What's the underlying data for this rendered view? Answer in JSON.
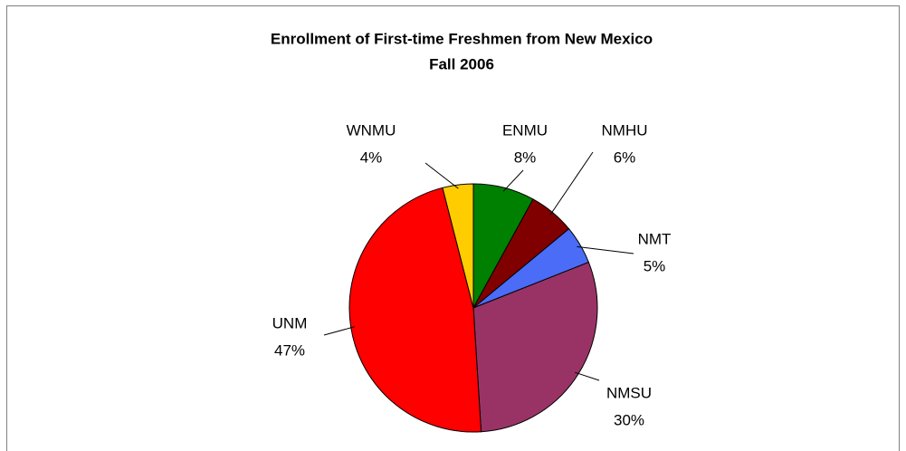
{
  "chart_data": {
    "type": "pie",
    "title": "Enrollment of First-time Freshmen from New Mexico",
    "subtitle": "Fall 2006",
    "categories": [
      "ENMU",
      "NMHU",
      "NMT",
      "NMSU",
      "UNM",
      "WNMU"
    ],
    "values": [
      8,
      6,
      5,
      30,
      47,
      4
    ],
    "value_labels": [
      "8%",
      "6%",
      "5%",
      "30%",
      "47%",
      "4%"
    ],
    "colors": [
      "#008000",
      "#800000",
      "#4a6cf7",
      "#993366",
      "#ff0000",
      "#ffcc00"
    ]
  }
}
